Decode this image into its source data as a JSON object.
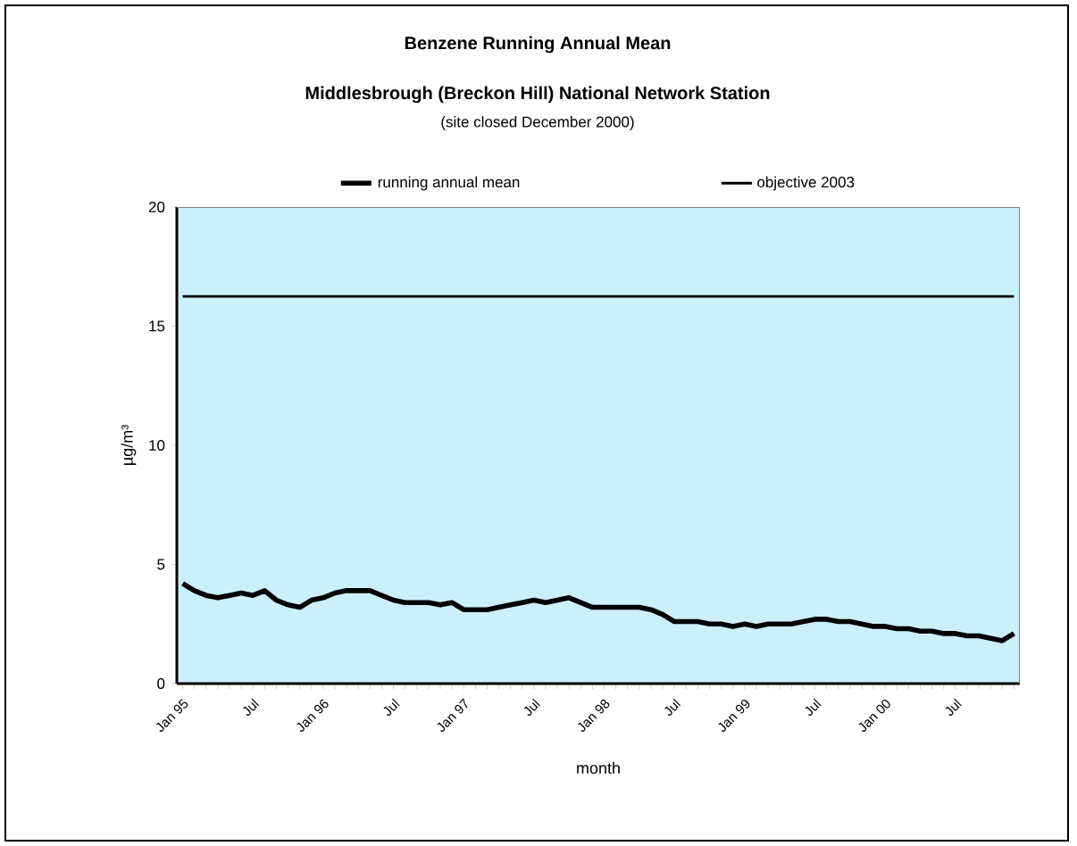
{
  "chart_data": {
    "type": "line",
    "title": "Benzene Running Annual Mean",
    "subtitle": "Middlesbrough (Breckon Hill) National Network Station",
    "annotations": [
      "(site closed December 2000)"
    ],
    "xlabel": "month",
    "ylabel": "µg/m³",
    "categories": [
      "Jan 95",
      null,
      null,
      null,
      null,
      null,
      "Jul",
      null,
      null,
      null,
      null,
      null,
      "Jan 96",
      null,
      null,
      null,
      null,
      null,
      "Jul",
      null,
      null,
      null,
      null,
      null,
      "Jan 97",
      null,
      null,
      null,
      null,
      null,
      "Jul",
      null,
      null,
      null,
      null,
      null,
      "Jan 98",
      null,
      null,
      null,
      null,
      null,
      "Jul",
      null,
      null,
      null,
      null,
      null,
      "Jan 99",
      null,
      null,
      null,
      null,
      null,
      "Jul",
      null,
      null,
      null,
      null,
      null,
      "Jan 00",
      null,
      null,
      null,
      null,
      null,
      "Jul",
      null,
      null,
      null,
      null,
      null
    ],
    "series": [
      {
        "name": "running annual mean",
        "color": "#000000",
        "values": [
          4.2,
          3.9,
          3.7,
          3.6,
          3.7,
          3.8,
          3.7,
          3.9,
          3.5,
          3.3,
          3.2,
          3.5,
          3.6,
          3.8,
          3.9,
          3.9,
          3.9,
          3.7,
          3.5,
          3.4,
          3.4,
          3.4,
          3.3,
          3.4,
          3.1,
          3.1,
          3.1,
          3.2,
          3.3,
          3.4,
          3.5,
          3.4,
          3.5,
          3.6,
          3.4,
          3.2,
          3.2,
          3.2,
          3.2,
          3.2,
          3.1,
          2.9,
          2.6,
          2.6,
          2.6,
          2.5,
          2.5,
          2.4,
          2.5,
          2.4,
          2.5,
          2.5,
          2.5,
          2.6,
          2.7,
          2.7,
          2.6,
          2.6,
          2.5,
          2.4,
          2.4,
          2.3,
          2.3,
          2.2,
          2.2,
          2.1,
          2.1,
          2.0,
          2.0,
          1.9,
          1.8,
          2.1
        ]
      },
      {
        "name": "objective 2003",
        "color": "#000000",
        "values": [
          16.25,
          16.25,
          16.25,
          16.25,
          16.25,
          16.25,
          16.25,
          16.25,
          16.25,
          16.25,
          16.25,
          16.25,
          16.25,
          16.25,
          16.25,
          16.25,
          16.25,
          16.25,
          16.25,
          16.25,
          16.25,
          16.25,
          16.25,
          16.25,
          16.25,
          16.25,
          16.25,
          16.25,
          16.25,
          16.25,
          16.25,
          16.25,
          16.25,
          16.25,
          16.25,
          16.25,
          16.25,
          16.25,
          16.25,
          16.25,
          16.25,
          16.25,
          16.25,
          16.25,
          16.25,
          16.25,
          16.25,
          16.25,
          16.25,
          16.25,
          16.25,
          16.25,
          16.25,
          16.25,
          16.25,
          16.25,
          16.25,
          16.25,
          16.25,
          16.25,
          16.25,
          16.25,
          16.25,
          16.25,
          16.25,
          16.25,
          16.25,
          16.25,
          16.25,
          16.25,
          16.25,
          16.25
        ]
      }
    ],
    "ylim": [
      0,
      20
    ],
    "yticks": [
      0,
      5,
      10,
      15,
      20
    ],
    "grid": false,
    "legend": "top",
    "marker": "none",
    "line_style": "solid"
  }
}
